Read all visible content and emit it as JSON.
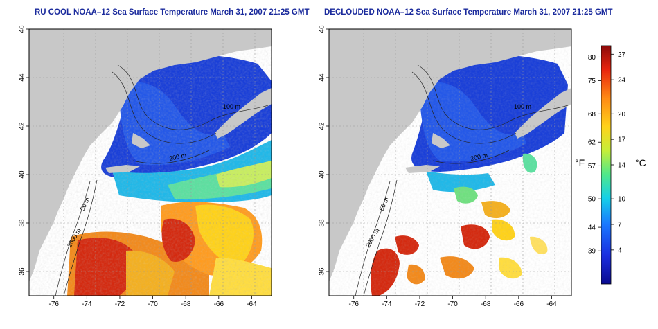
{
  "titles": {
    "left": "RU COOL NOAA–12 Sea Surface Temperature March 31, 2007 21:25 GMT",
    "right": "DECLOUDED NOAA–12 Sea Surface Temperature March 31, 2007 21:25 GMT"
  },
  "map": {
    "lon_ticks": [
      "-76",
      "-74",
      "-72",
      "-70",
      "-68",
      "-66",
      "-64"
    ],
    "lat_ticks": [
      "46",
      "44",
      "42",
      "40",
      "38",
      "36"
    ],
    "lon_range": [
      -77.5,
      -62.8
    ],
    "lat_range": [
      35,
      46
    ],
    "contour_labels": [
      "200 m",
      "100 m",
      "50 m",
      "2000 m"
    ],
    "colors": {
      "land": "#c8c8c8",
      "cloud": "#ffffff",
      "cold": "#1a3fd8",
      "warm": "#d42a10"
    }
  },
  "colorbar": {
    "fahrenheit_ticks": [
      "80",
      "75",
      "68",
      "62",
      "57",
      "50",
      "44",
      "39"
    ],
    "celsius_ticks": [
      "27",
      "24",
      "20",
      "17",
      "14",
      "10",
      "7",
      "4"
    ],
    "unit_f": "°F",
    "unit_c": "°C",
    "range_c": [
      0,
      28
    ]
  }
}
